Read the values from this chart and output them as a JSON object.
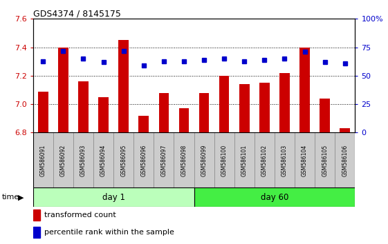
{
  "title": "GDS4374 / 8145175",
  "samples": [
    "GSM586091",
    "GSM586092",
    "GSM586093",
    "GSM586094",
    "GSM586095",
    "GSM586096",
    "GSM586097",
    "GSM586098",
    "GSM586099",
    "GSM586100",
    "GSM586101",
    "GSM586102",
    "GSM586103",
    "GSM586104",
    "GSM586105",
    "GSM586106"
  ],
  "transformed_count": [
    7.09,
    7.4,
    7.16,
    7.05,
    7.45,
    6.92,
    7.08,
    6.97,
    7.08,
    7.2,
    7.14,
    7.15,
    7.22,
    7.4,
    7.04,
    6.83
  ],
  "percentile_rank": [
    63,
    72,
    65,
    62,
    72,
    59,
    63,
    63,
    64,
    65,
    63,
    64,
    65,
    71,
    62,
    61
  ],
  "bar_color": "#cc0000",
  "dot_color": "#0000cc",
  "ylim_left": [
    6.8,
    7.6
  ],
  "ylim_right": [
    0,
    100
  ],
  "yticks_left": [
    6.8,
    7.0,
    7.2,
    7.4,
    7.6
  ],
  "yticks_right": [
    0,
    25,
    50,
    75,
    100
  ],
  "ytick_labels_right": [
    "0",
    "25",
    "50",
    "75",
    "100%"
  ],
  "day1_count": 8,
  "day1_label": "day 1",
  "day60_label": "day 60",
  "time_label": "time",
  "legend_bar_label": "transformed count",
  "legend_dot_label": "percentile rank within the sample",
  "bar_width": 0.5,
  "day1_color": "#bbffbb",
  "day60_color": "#44ee44",
  "xtick_bg_color": "#cccccc",
  "grid_color": "black"
}
